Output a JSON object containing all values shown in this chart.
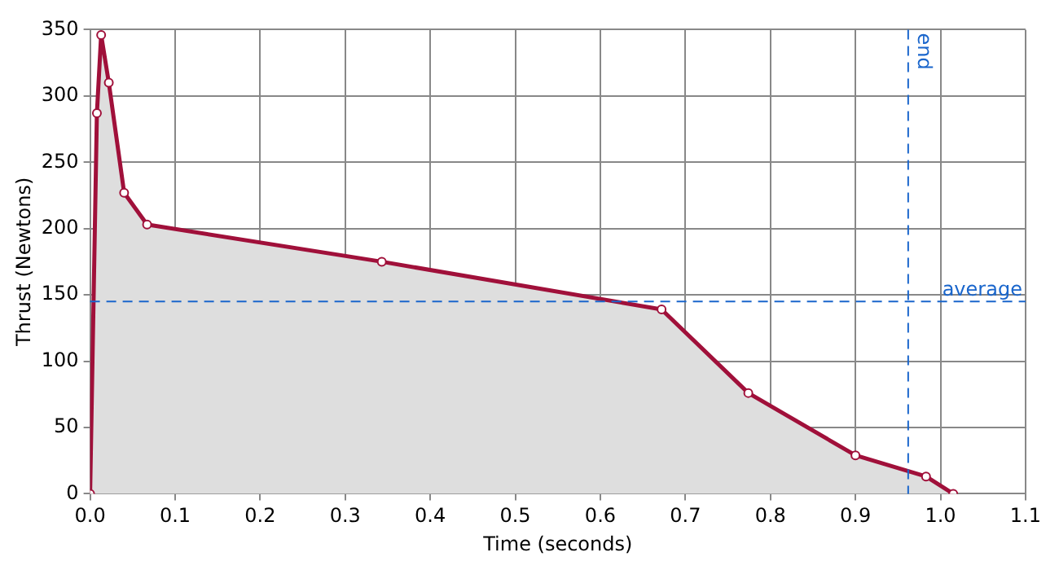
{
  "chart_data": {
    "type": "area",
    "xlabel": "Time (seconds)",
    "ylabel": "Thrust (Newtons)",
    "x": [
      0,
      0.008,
      0.013,
      0.022,
      0.04,
      0.067,
      0.343,
      0.672,
      0.774,
      0.9,
      0.983,
      1.015
    ],
    "series": [
      {
        "color": "#a0103a",
        "values": [
          0,
          287,
          346,
          310,
          227,
          203,
          175,
          139,
          76,
          29,
          13,
          0
        ]
      }
    ],
    "xlim": [
      0,
      1.1
    ],
    "xticks": [
      {
        "value": 0,
        "label": "0.0"
      },
      0.1,
      0.2,
      0.3,
      0.4,
      0.5,
      0.6,
      0.7,
      0.8,
      0.9,
      {
        "value": 1,
        "label": "1.0"
      },
      1.1
    ],
    "ylim": [
      0,
      350
    ],
    "yticks": [
      0,
      50,
      100,
      150,
      200,
      250,
      300,
      350
    ],
    "ref_lines": [
      {
        "axis": "y",
        "value": 145,
        "label": "average",
        "color": "#1a66cc",
        "line_style": "dashed"
      },
      {
        "axis": "x",
        "value": 0.962,
        "label": "end",
        "color": "#1a66cc",
        "line_style": "dashed"
      }
    ],
    "grid": true,
    "marker": "circle",
    "line_style": "solid",
    "legend": false
  }
}
